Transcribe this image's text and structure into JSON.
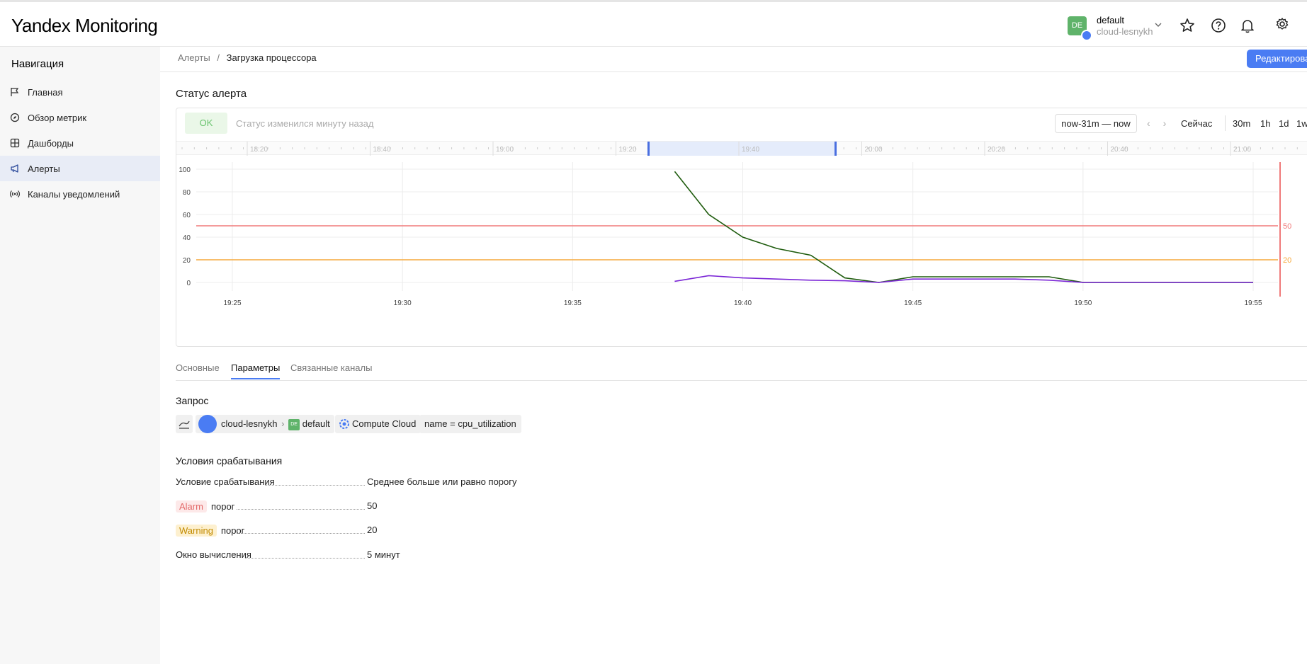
{
  "app": {
    "logo_yandex": "Yandex",
    "logo_monitoring": "Monitoring"
  },
  "account": {
    "avatar": "DE",
    "name": "default",
    "cloud": "cloud-lesnykh"
  },
  "sidebar": {
    "title": "Навигация",
    "items": [
      {
        "label": "Главная",
        "icon": "flag-icon"
      },
      {
        "label": "Обзор метрик",
        "icon": "compass-icon"
      },
      {
        "label": "Дашборды",
        "icon": "grid-icon"
      },
      {
        "label": "Алерты",
        "icon": "megaphone-icon"
      },
      {
        "label": "Каналы уведомлений",
        "icon": "broadcast-icon"
      }
    ]
  },
  "breadcrumbs": {
    "root": "Алерты",
    "sep": "/",
    "current": "Загрузка процессора"
  },
  "edit_button": "Редактировать",
  "alert_status": {
    "title": "Статус алерта",
    "badge": "OK",
    "status_text": "Статус изменился минуту назад",
    "range": "now-31m — now",
    "now": "Сейчас",
    "scales": [
      "30m",
      "1h",
      "1d",
      "1w"
    ]
  },
  "timeline_labels": [
    "18:20",
    "18:40",
    "19:00",
    "19:20",
    "19:40",
    "20:00",
    "20:20",
    "20:40",
    "21:00"
  ],
  "chart_data": {
    "type": "line",
    "x": [
      "19:38",
      "19:39",
      "19:40",
      "19:41",
      "19:42",
      "19:43",
      "19:44",
      "19:45",
      "19:46",
      "19:47",
      "19:48",
      "19:49",
      "19:50",
      "19:51",
      "19:52",
      "19:53",
      "19:54",
      "19:55"
    ],
    "x_ticks": [
      "19:25",
      "19:30",
      "19:35",
      "19:40",
      "19:45",
      "19:50",
      "19:55"
    ],
    "y_ticks": [
      "100",
      "80",
      "60",
      "40",
      "20",
      "0"
    ],
    "ylim": [
      0,
      100
    ],
    "series": [
      {
        "color": "#1f5c0e",
        "values": [
          98,
          60,
          40,
          30,
          24,
          4,
          0,
          5,
          5,
          5,
          5,
          5,
          0,
          0,
          0,
          0,
          0,
          0
        ]
      },
      {
        "color": "#7b26d6",
        "values": [
          1,
          6,
          4,
          3,
          2,
          1.5,
          0,
          3,
          3,
          3,
          3,
          2,
          0,
          0,
          0,
          0,
          0,
          0
        ]
      }
    ],
    "thresholds": [
      {
        "label": "50",
        "value": 50,
        "color": "#f07a7a"
      },
      {
        "label": "20",
        "value": 20,
        "color": "#f5a93c"
      }
    ]
  },
  "tabs": [
    "Основные",
    "Параметры",
    "Связанные каналы"
  ],
  "query": {
    "title": "Запрос",
    "cloud": "cloud-lesnykh",
    "folder_avatar": "DE",
    "folder": "default",
    "service": "Compute Cloud",
    "selector": "name = cpu_utilization"
  },
  "conditions": {
    "title": "Условия срабатывания",
    "trigger_label": "Условие срабатывания",
    "trigger_value": "Среднее больше или равно порогу",
    "alarm_badge": "Alarm",
    "alarm_label": "порог",
    "alarm_value": "50",
    "warn_badge": "Warning",
    "warn_label": "порог",
    "warn_value": "20",
    "window_label": "Окно вычисления",
    "window_value": "5 минут"
  }
}
